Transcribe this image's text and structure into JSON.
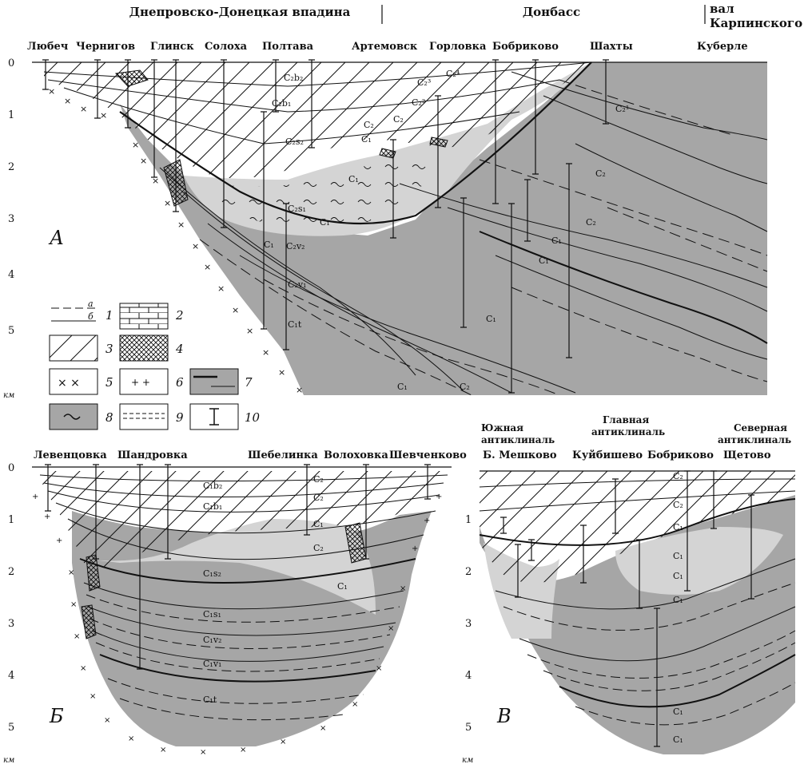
{
  "header": {
    "region_1": "Днепровско-Донецкая впадина",
    "region_2": "Донбасс",
    "region_3_line1": "вал",
    "region_3_line2": "Карпинского"
  },
  "panel_a": {
    "letter": "А",
    "localities": [
      "Любеч",
      "Чернигов",
      "Глинск",
      "Солоха",
      "Полтава",
      "Артемовск",
      "Горловка",
      "Бобриково",
      "Шахты",
      "Куберле"
    ],
    "depth_ticks": [
      "0",
      "1",
      "2",
      "3",
      "4",
      "5"
    ],
    "depth_unit": "км",
    "strata_labels": [
      "C₂b₂",
      "C₂b₁",
      "C₂s₂",
      "C₁",
      "C₁",
      "C₂⁴",
      "C₂³",
      "C₂²",
      "C₂",
      "C₂¹",
      "C₂",
      "C₂",
      "C₂s₁",
      "C₁",
      "C₁",
      "C₂v₂",
      "C₂v₁",
      "C₁t",
      "C₁",
      "C₁",
      "C₁",
      "C₁",
      "C₂",
      "C₂"
    ]
  },
  "legend": {
    "items": [
      {
        "num": "1",
        "sub_a": "а",
        "sub_b": "б"
      },
      {
        "num": "2"
      },
      {
        "num": "3"
      },
      {
        "num": "4"
      },
      {
        "num": "5"
      },
      {
        "num": "6"
      },
      {
        "num": "7"
      },
      {
        "num": "8"
      },
      {
        "num": "9"
      },
      {
        "num": "10"
      }
    ]
  },
  "panel_b": {
    "letter": "Б",
    "localities": [
      "Левенцовка",
      "Шандровка",
      "Шебелинка",
      "Волоховка",
      "Шевченково"
    ],
    "depth_ticks": [
      "0",
      "1",
      "2",
      "3",
      "4",
      "5"
    ],
    "depth_unit": "км",
    "strata_labels": [
      "C₁b₂",
      "C₁b₁",
      "C₁s₂",
      "C₁s₁",
      "C₁v₂",
      "C₁v₁",
      "C₁t",
      "C₂",
      "C₂",
      "C₂",
      "C₁",
      "C₁"
    ]
  },
  "panel_v": {
    "letter": "В",
    "group_1_line1": "Южная",
    "group_1_line2": "антиклиналь",
    "group_2_line1": "Главная",
    "group_2_line2": "антиклиналь",
    "group_3_line1": "Северная",
    "group_3_line2": "антиклиналь",
    "localities": [
      "Б. Мешково",
      "Куйбишево",
      "Бобриково",
      "Щетово"
    ],
    "depth_ticks": [
      "1",
      "2",
      "3",
      "4",
      "5"
    ],
    "depth_unit": "км",
    "strata_labels": [
      "C₂",
      "C₂",
      "C₁",
      "C₁",
      "C₁",
      "C₁",
      "C₁",
      "C₁"
    ]
  },
  "colors": {
    "gray_fill": "#a6a6a6",
    "light_fill": "#d4d4d4",
    "line": "#111111"
  }
}
